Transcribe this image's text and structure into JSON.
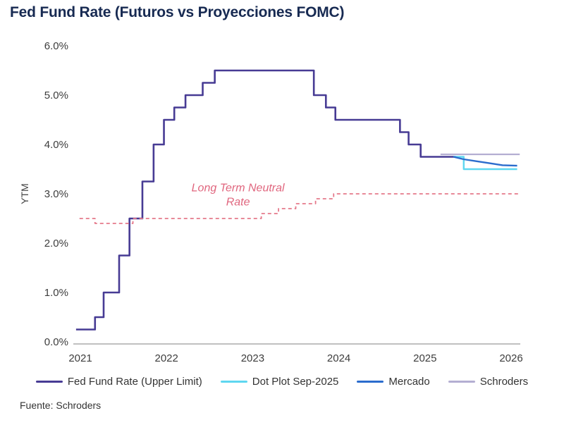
{
  "title": "Fed Fund Rate (Futuros vs Proyecciones FOMC)",
  "source": "Fuente: Schroders",
  "colors": {
    "title": "#172a52",
    "axis_text": "#3d3d3d",
    "axis_line": "#c0c0c0",
    "fed_line": "#473b94",
    "neutral_line": "#e5798b",
    "dot_plot_line": "#5ed7f0",
    "mercado_line": "#2b6ccd",
    "schroders_line": "#b4aed2"
  },
  "chart_data": {
    "type": "line",
    "title": "Fed Fund Rate (Futuros vs Proyecciones FOMC)",
    "xlabel": "",
    "ylabel": "YTM",
    "ylim": [
      0,
      6
    ],
    "ytick_step": 1,
    "ytick_suffix": "%",
    "xticks": [
      2021,
      2022,
      2023,
      2024,
      2025,
      2026
    ],
    "grid": false,
    "legend_position": "bottom",
    "annotation": {
      "lines": [
        "Long Term Neutral",
        "Rate"
      ],
      "x": 2022.83,
      "y": 3.05,
      "color": "#e0667e"
    },
    "series": [
      {
        "name": "Fed Fund Rate (Upper Limit)",
        "color": "#473b94",
        "style": "solid",
        "step": true,
        "width": 2.6,
        "in_legend": true,
        "points": [
          [
            2020.95,
            0.25
          ],
          [
            2021.17,
            0.5
          ],
          [
            2021.27,
            1.0
          ],
          [
            2021.45,
            1.75
          ],
          [
            2021.57,
            2.5
          ],
          [
            2021.72,
            3.25
          ],
          [
            2021.85,
            4.0
          ],
          [
            2021.97,
            4.5
          ],
          [
            2022.09,
            4.75
          ],
          [
            2022.22,
            5.0
          ],
          [
            2022.42,
            5.25
          ],
          [
            2022.56,
            5.5
          ],
          [
            2023.71,
            5.0
          ],
          [
            2023.85,
            4.75
          ],
          [
            2023.96,
            4.5
          ],
          [
            2024.71,
            4.25
          ],
          [
            2024.81,
            4.0
          ],
          [
            2024.95,
            3.75
          ],
          [
            2025.36,
            3.75
          ]
        ]
      },
      {
        "name": "Long Term Neutral Rate",
        "color": "#e5798b",
        "style": "dashed",
        "step": true,
        "width": 1.8,
        "in_legend": false,
        "points": [
          [
            2020.99,
            2.5
          ],
          [
            2021.17,
            2.4
          ],
          [
            2021.61,
            2.5
          ],
          [
            2023.1,
            2.6
          ],
          [
            2023.3,
            2.7
          ],
          [
            2023.5,
            2.8
          ],
          [
            2023.73,
            2.9
          ],
          [
            2023.94,
            3.0
          ],
          [
            2026.1,
            3.0
          ]
        ]
      },
      {
        "name": "Dot Plot Sep-2025",
        "color": "#5ed7f0",
        "style": "solid",
        "step": true,
        "width": 2.4,
        "in_legend": true,
        "points": [
          [
            2025.33,
            3.75
          ],
          [
            2025.45,
            3.5
          ],
          [
            2026.07,
            3.5
          ]
        ]
      },
      {
        "name": "Mercado",
        "color": "#2b6ccd",
        "style": "solid",
        "step": false,
        "width": 2.4,
        "in_legend": true,
        "points": [
          [
            2025.33,
            3.75
          ],
          [
            2025.45,
            3.7
          ],
          [
            2025.6,
            3.66
          ],
          [
            2025.75,
            3.62
          ],
          [
            2025.9,
            3.58
          ],
          [
            2026.07,
            3.57
          ]
        ]
      },
      {
        "name": "Schroders",
        "color": "#b4aed2",
        "style": "solid",
        "step": false,
        "width": 2.2,
        "in_legend": true,
        "points": [
          [
            2025.18,
            3.8
          ],
          [
            2026.1,
            3.8
          ]
        ]
      }
    ]
  },
  "legend": {
    "items": [
      {
        "label": "Fed Fund Rate (Upper Limit)",
        "color": "#473b94"
      },
      {
        "label": "Dot Plot Sep-2025",
        "color": "#5ed7f0"
      },
      {
        "label": "Mercado",
        "color": "#2b6ccd"
      },
      {
        "label": "Schroders",
        "color": "#b4aed2"
      }
    ]
  }
}
